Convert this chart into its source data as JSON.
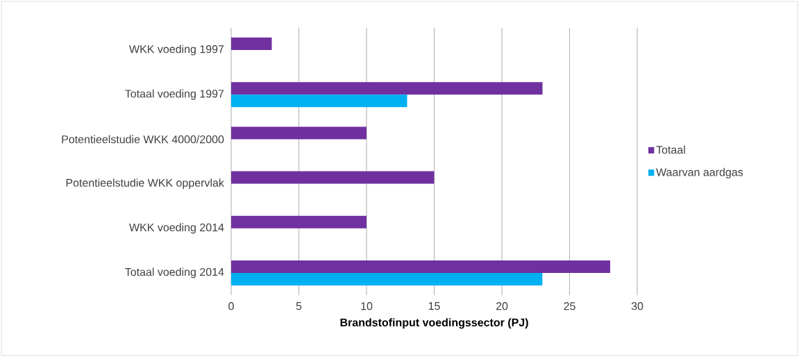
{
  "chart_data": {
    "type": "bar",
    "orientation": "horizontal",
    "xlabel": "Brandstofinput voedingssector (PJ)",
    "categories": [
      "WKK voeding 1997",
      "Totaal voeding 1997",
      "Potentieelstudie WKK 4000/2000",
      "Potentieelstudie WKK oppervlak",
      "WKK voeding 2014",
      "Totaal voeding 2014"
    ],
    "series": [
      {
        "name": "Totaal",
        "color": "#7030a0",
        "values": [
          3,
          23,
          10,
          15,
          10,
          28
        ]
      },
      {
        "name": "Waarvan aardgas",
        "color": "#00b0f0",
        "values": [
          null,
          13,
          null,
          null,
          null,
          23
        ]
      }
    ],
    "xlim": [
      0,
      30
    ],
    "xticks": [
      0,
      5,
      10,
      15,
      20,
      25,
      30
    ],
    "grid": "x",
    "legend": "right"
  }
}
